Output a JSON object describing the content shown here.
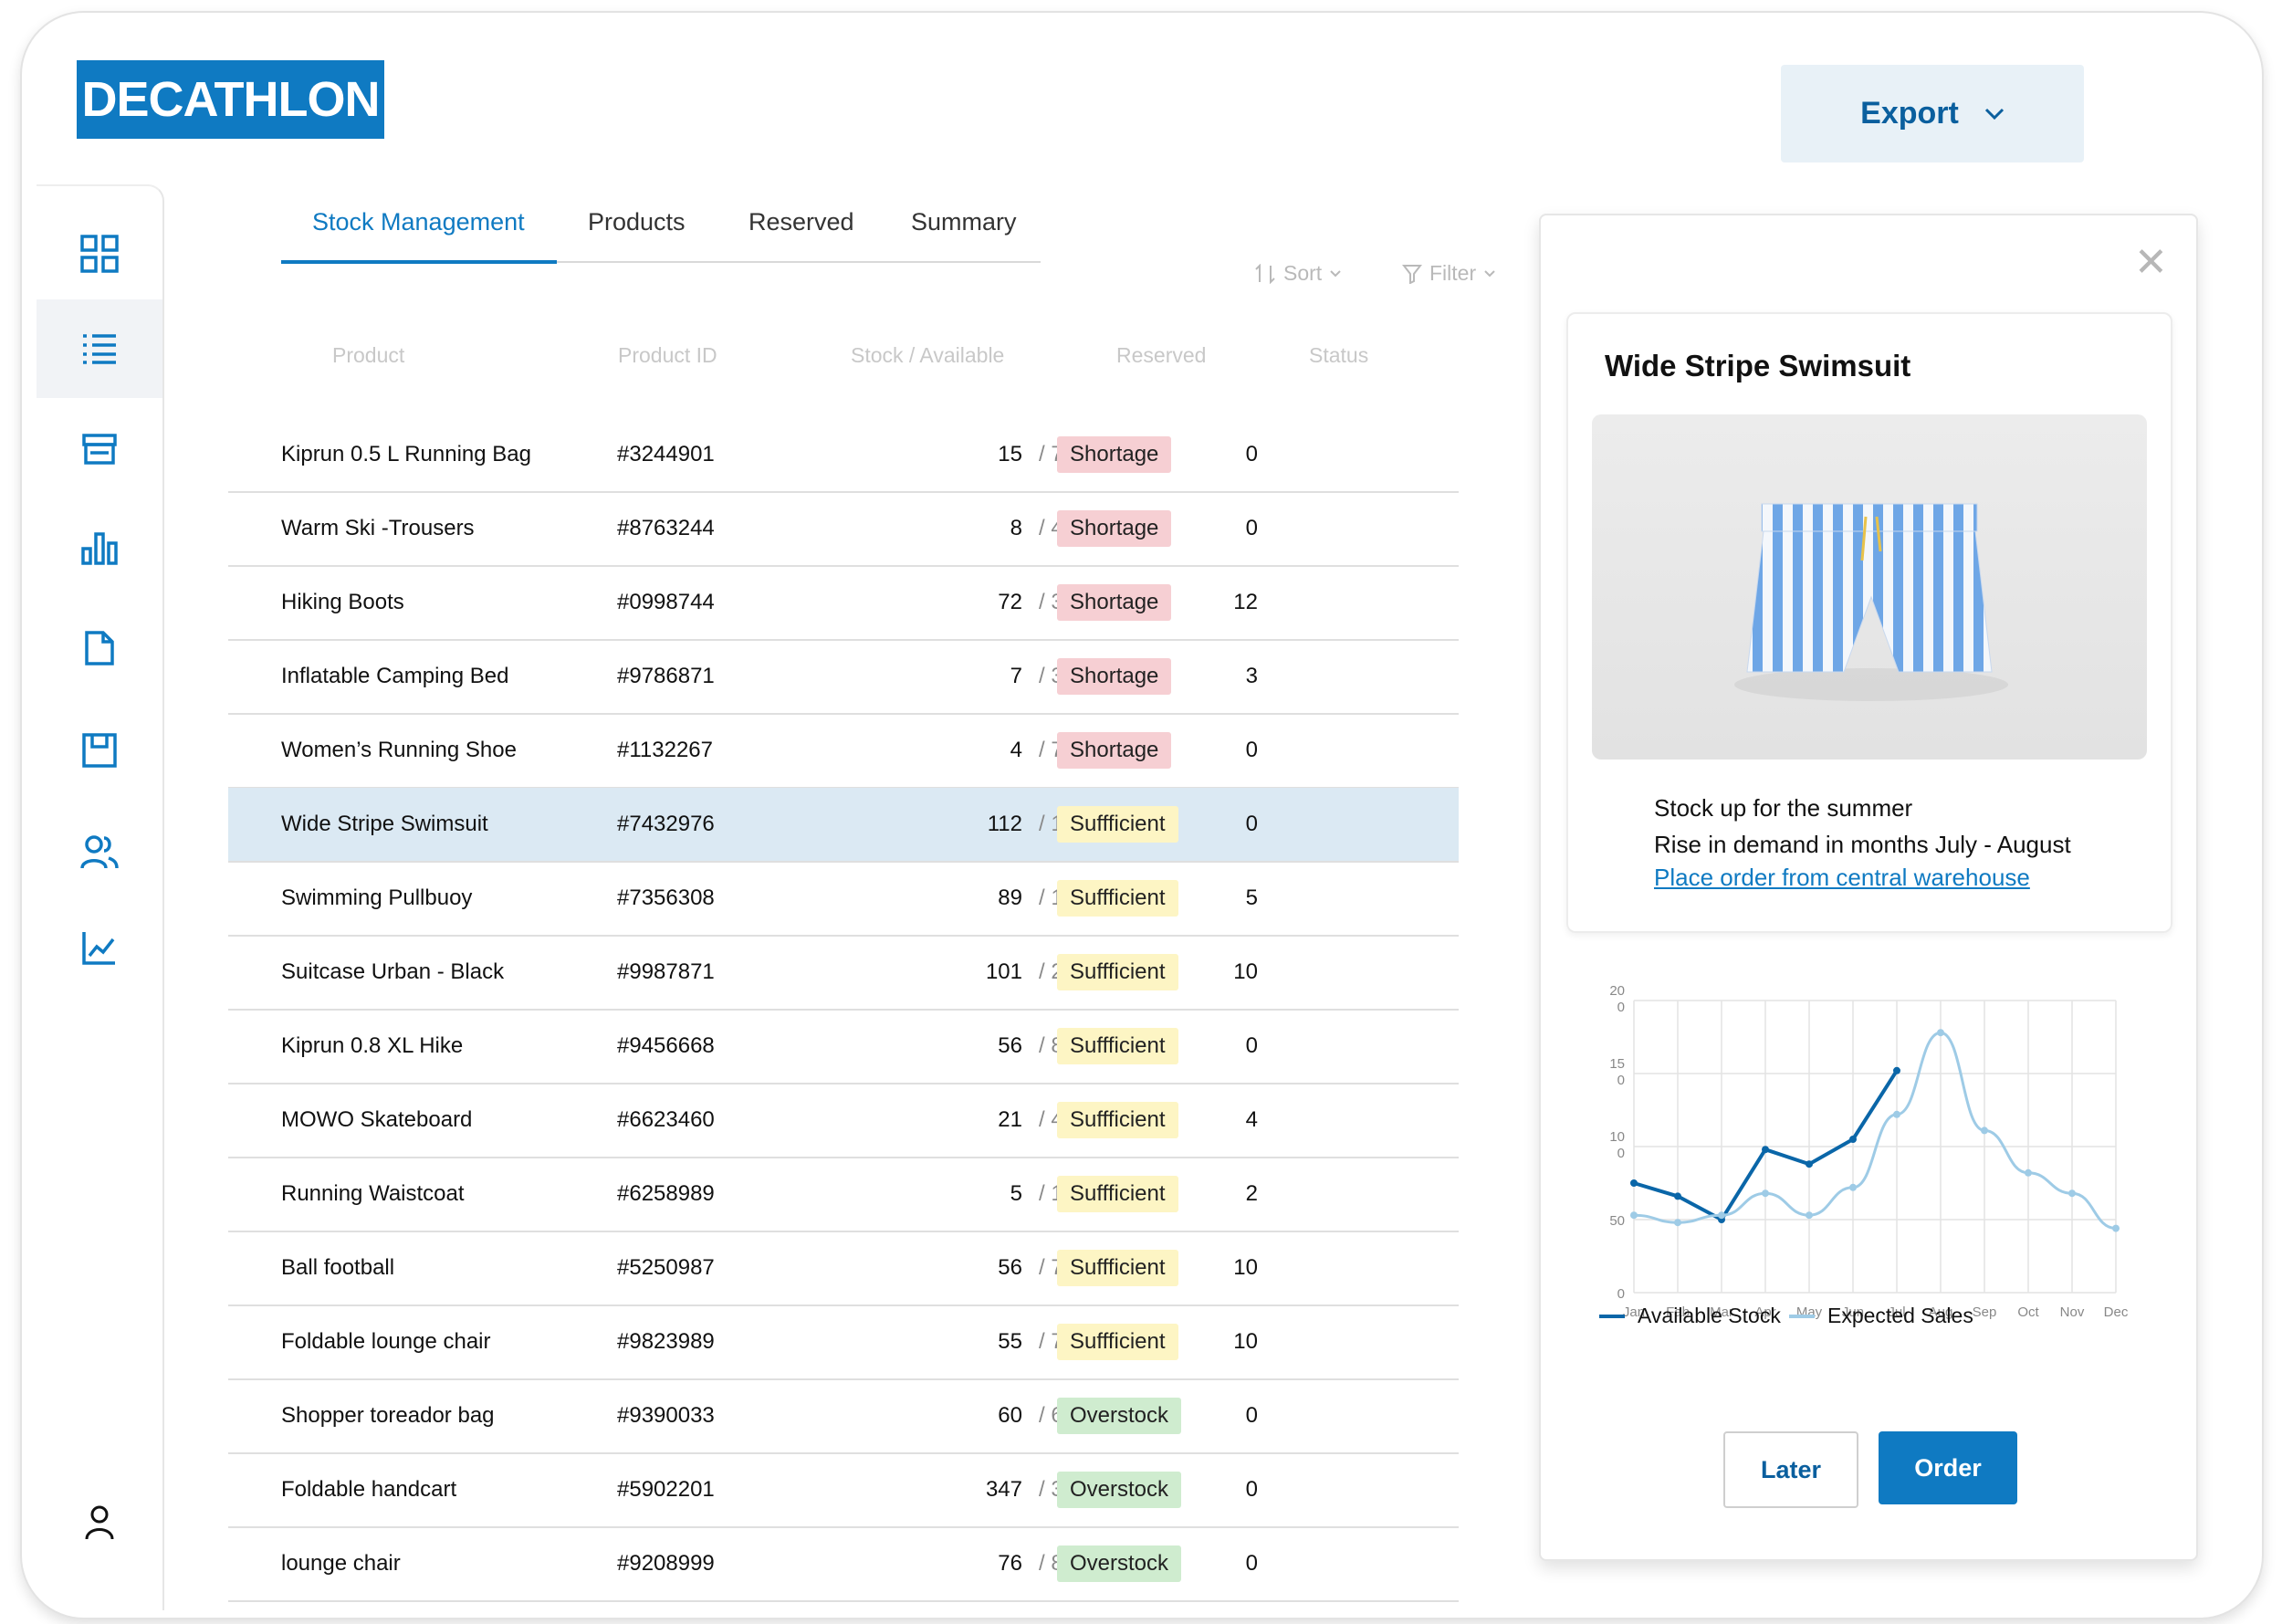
{
  "brand": {
    "logo_text": "DECATHLON",
    "accent": "#0f7ac2"
  },
  "header": {
    "export_label": "Export",
    "export_icon": "chevron-down-icon"
  },
  "sidebar": {
    "items": [
      {
        "icon": "dashboard-grid-icon"
      },
      {
        "icon": "list-icon",
        "active": true
      },
      {
        "icon": "store-icon"
      },
      {
        "icon": "bar-chart-icon"
      },
      {
        "icon": "document-icon"
      },
      {
        "icon": "save-icon"
      },
      {
        "icon": "users-icon"
      },
      {
        "icon": "line-chart-icon"
      }
    ],
    "account_icon": "user-icon"
  },
  "tabs": [
    {
      "label": "Stock Management",
      "active": true
    },
    {
      "label": "Products"
    },
    {
      "label": "Reserved"
    },
    {
      "label": "Summary"
    }
  ],
  "toolbar": {
    "sort_label": "Sort",
    "filter_label": "Filter"
  },
  "table": {
    "columns": [
      "Product",
      "Product ID",
      "Stock / Available",
      "Reserved",
      "Status"
    ],
    "rows": [
      {
        "name": "Kiprun 0.5 L Running Bag",
        "id": "#3244901",
        "stock": "15",
        "available": "70",
        "reserved": "0",
        "status": "Shortage"
      },
      {
        "name": "Warm Ski -Trousers",
        "id": "#8763244",
        "stock": "8",
        "available": "40",
        "reserved": "0",
        "status": "Shortage"
      },
      {
        "name": "Hiking Boots",
        "id": "#0998744",
        "stock": "72",
        "available": "300",
        "reserved": "12",
        "status": "Shortage"
      },
      {
        "name": "Inflatable Camping Bed",
        "id": "#9786871",
        "stock": "7",
        "available": "35",
        "reserved": "3",
        "status": "Shortage"
      },
      {
        "name": "Women’s Running Shoe",
        "id": "#1132267",
        "stock": "4",
        "available": "70",
        "reserved": "0",
        "status": "Shortage"
      },
      {
        "name": "Wide Stripe Swimsuit",
        "id": "#7432976",
        "stock": "112",
        "available": "150",
        "reserved": "0",
        "status": "Suffficient",
        "selected": true
      },
      {
        "name": "Swimming Pullbuoy",
        "id": "#7356308",
        "stock": "89",
        "available": "160",
        "reserved": "5",
        "status": "Suffficient"
      },
      {
        "name": "Suitcase Urban - Black",
        "id": "#9987871",
        "stock": "101",
        "available": "200",
        "reserved": "10",
        "status": "Suffficient"
      },
      {
        "name": "Kiprun 0.8 XL Hike",
        "id": "#9456668",
        "stock": "56",
        "available": "80",
        "reserved": "0",
        "status": "Suffficient"
      },
      {
        "name": "MOWO Skateboard",
        "id": "#6623460",
        "stock": "21",
        "available": "40",
        "reserved": "4",
        "status": "Suffficient"
      },
      {
        "name": "Running Waistcoat",
        "id": "#6258989",
        "stock": "5",
        "available": "10",
        "reserved": "2",
        "status": "Suffficient"
      },
      {
        "name": "Ball football",
        "id": "#5250987",
        "stock": "56",
        "available": "70",
        "reserved": "10",
        "status": "Suffficient"
      },
      {
        "name": "Foldable lounge chair",
        "id": "#9823989",
        "stock": "55",
        "available": "70",
        "reserved": "10",
        "status": "Suffficient"
      },
      {
        "name": "Shopper toreador bag",
        "id": "#9390033",
        "stock": "60",
        "available": "60",
        "reserved": "0",
        "status": "Overstock"
      },
      {
        "name": " Foldable handcart",
        "id": "#5902201",
        "stock": "347",
        "available": "350",
        "reserved": "0",
        "status": "Overstock"
      },
      {
        "name": "lounge chair",
        "id": "#9208999",
        "stock": "76",
        "available": "80",
        "reserved": "0",
        "status": "Overstock"
      }
    ]
  },
  "status_colors": {
    "Shortage": "#f6cfd3",
    "Suffficient": "#fdf5c4",
    "Overstock": "#cfeccf"
  },
  "panel": {
    "close_icon": "close-icon",
    "product_title": "Wide Stripe Swimsuit",
    "image_icon": "swim-shorts-image",
    "line1": "Stock up for the summer",
    "line2": "Rise in demand in months July - August",
    "link": "Place order from central warehouse",
    "later_label": "Later",
    "order_label": "Order"
  },
  "chart_data": {
    "type": "line",
    "categories": [
      "Jan",
      "Fab",
      "Mar",
      "Apr",
      "May",
      "Jun",
      "Jul",
      "Aug",
      "Sep",
      "Oct",
      "Nov",
      "Dec"
    ],
    "ytick_labels": [
      "0",
      "50",
      "10\n0",
      "15\n0",
      "20\n0"
    ],
    "ylim": [
      0,
      200
    ],
    "grid": true,
    "legend_position": "bottom-left",
    "series": [
      {
        "name": "Available Stock",
        "color": "#0a66a8",
        "values": [
          75,
          66,
          50,
          98,
          88,
          105,
          152,
          null,
          null,
          null,
          null,
          null
        ]
      },
      {
        "name": "Expected Sales",
        "color": "#9ecbe6",
        "values": [
          53,
          48,
          53,
          68,
          53,
          72,
          122,
          178,
          111,
          82,
          68,
          44
        ]
      }
    ]
  }
}
